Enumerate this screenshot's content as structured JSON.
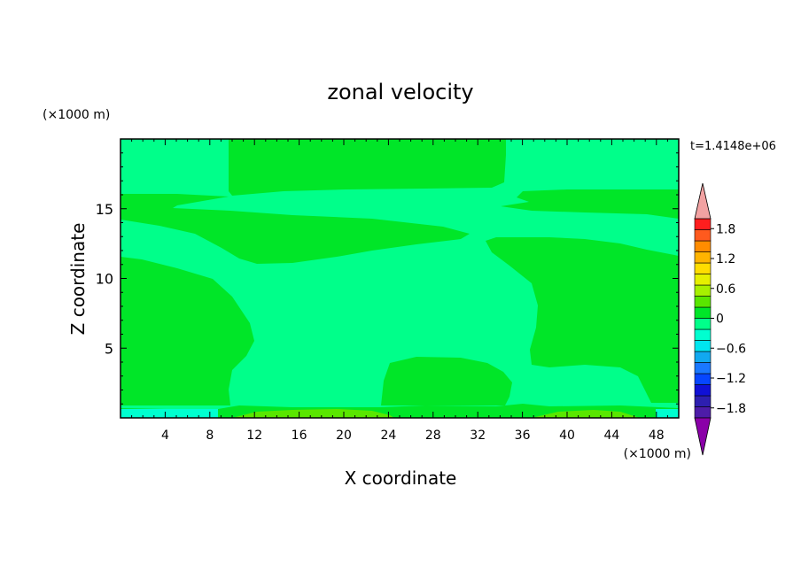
{
  "chart_data": {
    "type": "heatmap",
    "title": "zonal velocity",
    "xlabel": "X coordinate",
    "ylabel": "Z coordinate",
    "x_unit": "(×1000 m)",
    "y_unit": "(×1000 m)",
    "time_label": "t=1.4148e+06",
    "xlim": [
      0,
      50
    ],
    "ylim": [
      0,
      20
    ],
    "x_ticks": [
      4,
      8,
      12,
      16,
      20,
      24,
      28,
      32,
      36,
      40,
      44,
      48
    ],
    "y_ticks": [
      5,
      10,
      15
    ],
    "colorbar": {
      "labels": [
        "1.8",
        "1.2",
        "0.6",
        "0",
        "−0.6",
        "−1.2",
        "−1.8"
      ],
      "label_values": [
        1.8,
        1.2,
        0.6,
        0,
        -0.6,
        -1.2,
        -1.8
      ],
      "range": [
        -2.0,
        2.0
      ],
      "colors": [
        "#8a00a8",
        "#4d1ca8",
        "#2d1fb0",
        "#1010d6",
        "#0646ff",
        "#1a78ff",
        "#11a8f0",
        "#00e6f0",
        "#00ffd0",
        "#00ff8a",
        "#00e628",
        "#5ae600",
        "#a8f000",
        "#e6f000",
        "#ffdd00",
        "#ffb400",
        "#ff8c00",
        "#ff5a1e",
        "#ff1e1e",
        "#f2a2a2"
      ]
    },
    "contour_levels_shown": [
      {
        "range": "0 to 0.2",
        "color": "#00e628"
      },
      {
        "range": "-0.2 to 0",
        "color": "#00ff8a"
      },
      {
        "range": "0.2 to 0.4",
        "color": "#5ae600"
      },
      {
        "range": "-0.4 to -0.2",
        "color": "#00ffd0"
      }
    ]
  }
}
